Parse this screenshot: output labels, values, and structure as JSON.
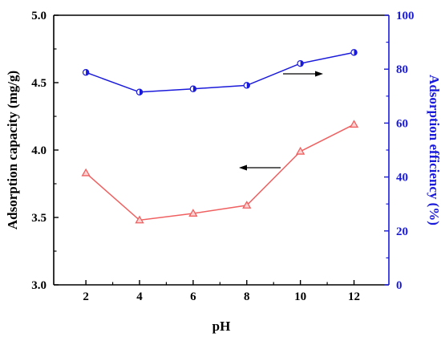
{
  "chart_data": {
    "type": "line",
    "title": "",
    "xlabel": "pH",
    "ylabel_left": "Adsorption capacity (mg/g)",
    "ylabel_right": "Adsorption efficiency (%)",
    "x": [
      2,
      4,
      6,
      8,
      10,
      12
    ],
    "x_ticks": [
      "2",
      "4",
      "6",
      "8",
      "10",
      "12"
    ],
    "xlim": [
      0.8,
      13.3
    ],
    "ylim_left": [
      3.0,
      5.0
    ],
    "ylim_right": [
      0,
      100
    ],
    "left_ticks": [
      "3.0",
      "3.5",
      "4.0",
      "4.5",
      "5.0"
    ],
    "right_ticks": [
      "0",
      "20",
      "40",
      "60",
      "80",
      "100"
    ],
    "grid": false,
    "series": [
      {
        "axis": "left",
        "marker": "triangle-up",
        "color": "#f06060",
        "values": [
          3.83,
          3.48,
          3.53,
          3.59,
          3.99,
          4.19
        ]
      },
      {
        "axis": "right",
        "marker": "half-filled-circle",
        "color": "#1a1adb",
        "values": [
          78.8,
          71.5,
          72.7,
          74.0,
          82.1,
          86.2
        ]
      }
    ],
    "annotations": [
      {
        "type": "arrow",
        "direction": "left",
        "refers_to_axis": "left"
      },
      {
        "type": "arrow",
        "direction": "right",
        "refers_to_axis": "right"
      }
    ],
    "colors": {
      "left_axis": "#000000",
      "right_axis": "#1a1adb"
    }
  }
}
